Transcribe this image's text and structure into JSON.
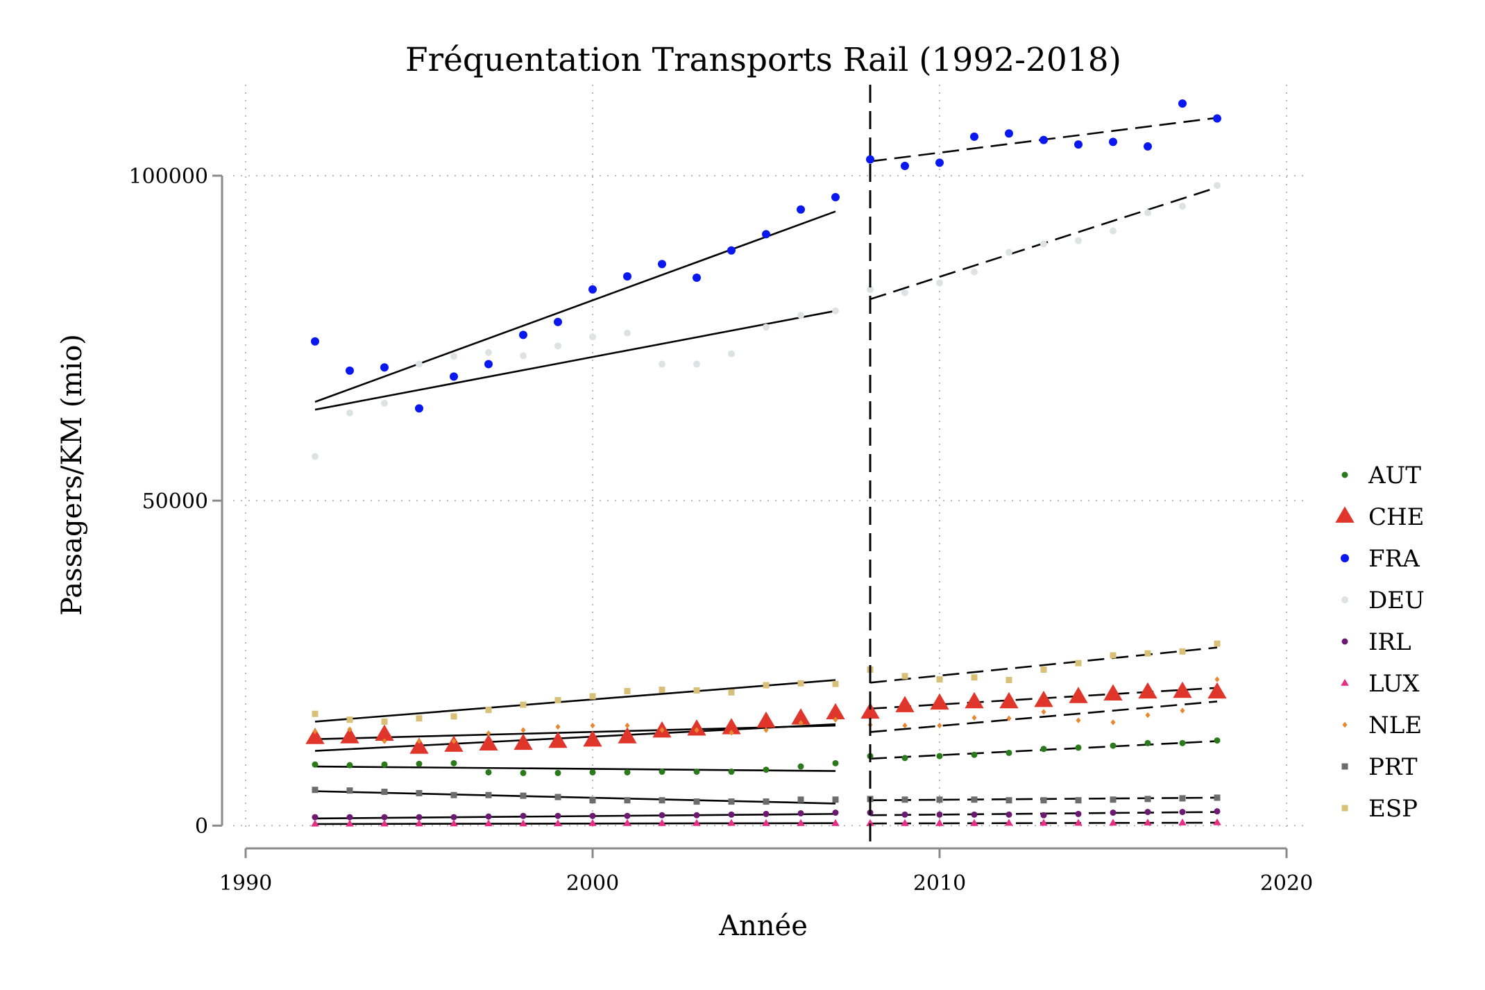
{
  "chart_data": {
    "type": "scatter",
    "title": "Fréquentation Transports Rail (1992-2018)",
    "xlabel": "Année",
    "ylabel": "Passagers/KM (mio)",
    "xlim": [
      1990,
      2020
    ],
    "ylim": [
      -3500,
      114000
    ],
    "xticks": [
      1990,
      2000,
      2010,
      2020
    ],
    "yticks": [
      0,
      50000,
      100000
    ],
    "grid": true,
    "legend_position": "right",
    "break_year": 2008,
    "x": [
      1992,
      1993,
      1994,
      1995,
      1996,
      1997,
      1998,
      1999,
      2000,
      2001,
      2002,
      2003,
      2004,
      2005,
      2006,
      2007,
      2008,
      2009,
      2010,
      2011,
      2012,
      2013,
      2014,
      2015,
      2016,
      2017,
      2018
    ],
    "series": [
      {
        "name": "AUT",
        "color": "#2a7a1c",
        "marker": "circle",
        "values": [
          9400,
          9300,
          9400,
          9500,
          9600,
          8200,
          8100,
          8100,
          8200,
          8200,
          8300,
          8300,
          8300,
          8600,
          9100,
          9600,
          10700,
          10400,
          10700,
          10900,
          11200,
          11800,
          12000,
          12300,
          12700,
          12700,
          13100
        ]
      },
      {
        "name": "CHE",
        "color": "#e0352b",
        "marker": "triangle",
        "values": [
          13500,
          13600,
          14000,
          12000,
          12300,
          12500,
          12600,
          12900,
          13100,
          13600,
          14500,
          14800,
          15000,
          16000,
          16500,
          17300,
          17400,
          18400,
          18800,
          19000,
          19000,
          19200,
          19800,
          20200,
          20500,
          20600,
          20500
        ]
      },
      {
        "name": "FRA",
        "color": "#0a18f0",
        "marker": "circle",
        "values": [
          74500,
          70000,
          70500,
          64200,
          69100,
          71000,
          75500,
          77500,
          82500,
          84500,
          86400,
          84300,
          88500,
          91000,
          94800,
          96700,
          102500,
          101500,
          102000,
          106000,
          106500,
          105500,
          104800,
          105200,
          104500,
          111100,
          108800
        ]
      },
      {
        "name": "DEU",
        "color": "#dde3e3",
        "marker": "circle",
        "values": [
          56800,
          63500,
          65000,
          71000,
          72200,
          72800,
          72300,
          73800,
          75200,
          75800,
          71000,
          71000,
          72600,
          76700,
          78500,
          79200,
          82500,
          82000,
          83500,
          85200,
          88200,
          89500,
          90000,
          91500,
          94300,
          95300,
          98500
        ]
      },
      {
        "name": "IRL",
        "color": "#6a1a70",
        "marker": "circle",
        "values": [
          1300,
          1300,
          1300,
          1300,
          1300,
          1400,
          1500,
          1500,
          1500,
          1500,
          1600,
          1600,
          1700,
          1800,
          1900,
          2000,
          2000,
          1700,
          1700,
          1700,
          1700,
          1600,
          1800,
          2000,
          2100,
          2100,
          2200
        ]
      },
      {
        "name": "LUX",
        "color": "#e62e85",
        "marker": "triangle",
        "values": [
          260,
          270,
          280,
          290,
          290,
          300,
          290,
          300,
          340,
          350,
          350,
          360,
          370,
          350,
          350,
          350,
          350,
          350,
          350,
          350,
          380,
          380,
          380,
          400,
          420,
          440,
          460
        ]
      },
      {
        "name": "NLE",
        "color": "#e8872d",
        "marker": "diamond",
        "values": [
          14500,
          14800,
          13000,
          13000,
          13000,
          14200,
          14700,
          15200,
          15400,
          15400,
          14700,
          14700,
          14300,
          14700,
          15800,
          16300,
          15500,
          15400,
          15400,
          16600,
          16500,
          17500,
          16200,
          15900,
          17000,
          17700,
          22500
        ]
      },
      {
        "name": "PRT",
        "color": "#6c6c6c",
        "marker": "square",
        "values": [
          5500,
          5400,
          5200,
          5000,
          4700,
          4700,
          4600,
          4400,
          3900,
          3900,
          3900,
          3700,
          3700,
          3700,
          4000,
          4000,
          4100,
          4000,
          4000,
          4000,
          3900,
          3900,
          3900,
          4000,
          4100,
          4200,
          4300
        ]
      },
      {
        "name": "ESP",
        "color": "#d8c078",
        "marker": "square",
        "values": [
          17200,
          16300,
          16000,
          16500,
          16800,
          17800,
          18600,
          19300,
          19900,
          20700,
          20900,
          20800,
          20500,
          21600,
          21900,
          21800,
          24000,
          23000,
          22500,
          22800,
          22400,
          24000,
          25000,
          26200,
          26500,
          26800,
          28000
        ]
      }
    ],
    "trend_lines": [
      {
        "series": "FRA",
        "segment": "1992-2007",
        "style": "solid",
        "x": [
          1992,
          2007
        ],
        "y": [
          65200,
          94500
        ]
      },
      {
        "series": "DEU",
        "segment": "1992-2007",
        "style": "solid",
        "x": [
          1992,
          2007
        ],
        "y": [
          64000,
          79200
        ]
      },
      {
        "series": "ESP",
        "segment": "1992-2007",
        "style": "solid",
        "x": [
          1992,
          2007
        ],
        "y": [
          16000,
          22400
        ]
      },
      {
        "series": "NLE",
        "segment": "1992-2007",
        "style": "solid",
        "x": [
          1992,
          2007
        ],
        "y": [
          13300,
          15400
        ]
      },
      {
        "series": "CHE",
        "segment": "1992-2007",
        "style": "solid",
        "x": [
          1992,
          2007
        ],
        "y": [
          11500,
          15600
        ]
      },
      {
        "series": "AUT",
        "segment": "1992-2007",
        "style": "solid",
        "x": [
          1992,
          2007
        ],
        "y": [
          9100,
          8400
        ]
      },
      {
        "series": "PRT",
        "segment": "1992-2007",
        "style": "solid",
        "x": [
          1992,
          2007
        ],
        "y": [
          5300,
          3400
        ]
      },
      {
        "series": "IRL",
        "segment": "1992-2007",
        "style": "solid",
        "x": [
          1992,
          2007
        ],
        "y": [
          1100,
          1800
        ]
      },
      {
        "series": "LUX",
        "segment": "1992-2007",
        "style": "solid",
        "x": [
          1992,
          2007
        ],
        "y": [
          250,
          380
        ]
      },
      {
        "series": "FRA",
        "segment": "2008-2018",
        "style": "dashed",
        "x": [
          2008,
          2018
        ],
        "y": [
          102200,
          108900
        ]
      },
      {
        "series": "DEU",
        "segment": "2008-2018",
        "style": "dashed",
        "x": [
          2008,
          2018
        ],
        "y": [
          81000,
          98200
        ]
      },
      {
        "series": "ESP",
        "segment": "2008-2018",
        "style": "dashed",
        "x": [
          2008,
          2018
        ],
        "y": [
          22000,
          27400
        ]
      },
      {
        "series": "CHE",
        "segment": "2008-2018",
        "style": "dashed",
        "x": [
          2008,
          2018
        ],
        "y": [
          18000,
          21200
        ]
      },
      {
        "series": "NLE",
        "segment": "2008-2018",
        "style": "dashed",
        "x": [
          2008,
          2018
        ],
        "y": [
          14400,
          19100
        ]
      },
      {
        "series": "AUT",
        "segment": "2008-2018",
        "style": "dashed",
        "x": [
          2008,
          2018
        ],
        "y": [
          10300,
          13000
        ]
      },
      {
        "series": "PRT",
        "segment": "2008-2018",
        "style": "dashed",
        "x": [
          2008,
          2018
        ],
        "y": [
          3900,
          4300
        ]
      },
      {
        "series": "IRL",
        "segment": "2008-2018",
        "style": "dashed",
        "x": [
          2008,
          2018
        ],
        "y": [
          1600,
          2100
        ]
      },
      {
        "series": "LUX",
        "segment": "2008-2018",
        "style": "dashed",
        "x": [
          2008,
          2018
        ],
        "y": [
          330,
          450
        ]
      }
    ]
  }
}
